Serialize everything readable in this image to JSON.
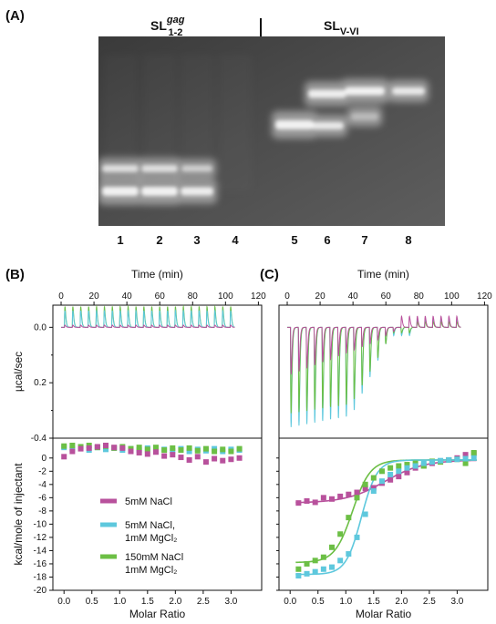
{
  "panel_a": {
    "label": "(A)",
    "group_left": {
      "main": "SL",
      "sup": "gag",
      "sub": "1-2"
    },
    "group_right": {
      "main": "SL",
      "sub": "V-VI"
    },
    "lanes": [
      "1",
      "2",
      "3",
      "4",
      "5",
      "6",
      "7",
      "8"
    ]
  },
  "panel_b": {
    "label": "(B)"
  },
  "panel_c": {
    "label": "(C)"
  },
  "legend": {
    "items": [
      {
        "lines": [
          "5mM NaCl"
        ],
        "color": "#b8519c"
      },
      {
        "lines": [
          "5mM NaCl,",
          "1mM MgCl₂"
        ],
        "color": "#5ec8dd"
      },
      {
        "lines": [
          "150mM NaCl",
          "1mM MgCl₂"
        ],
        "color": "#6cbf45"
      }
    ]
  },
  "chart_data": [
    {
      "type": "line",
      "panel": "B-top",
      "title": "",
      "xlabel": "Time (min)",
      "ylabel": "µcal/sec",
      "xlim": [
        -5,
        122
      ],
      "ylim": [
        -0.4,
        0.08
      ],
      "xticks": [
        "0",
        "20",
        "40",
        "60",
        "80",
        "100",
        "120"
      ],
      "yticks": [
        "0.0",
        "0.2",
        "-0.4"
      ],
      "injections": 22,
      "injection_interval_min": 4.8,
      "series": [
        {
          "color": "#6cbf45",
          "baseline": 0.0,
          "peak_height": 0.075
        },
        {
          "color": "#5ec8dd",
          "baseline": 0.0,
          "peak_height": 0.06
        },
        {
          "color": "#b8519c",
          "baseline": 0.0,
          "peak_height": 0.008
        }
      ]
    },
    {
      "type": "scatter",
      "panel": "B-bottom",
      "xlabel": "Molar Ratio",
      "ylabel": "kcal/mole of injectant",
      "xlim": [
        -0.2,
        3.55
      ],
      "ylim": [
        -20,
        3
      ],
      "xticks": [
        "0.0",
        "0.5",
        "1.0",
        "1.5",
        "2.0",
        "2.5",
        "3.0"
      ],
      "yticks": [
        "0",
        "-2",
        "-4",
        "-6",
        "-8",
        "-10",
        "-12",
        "-14",
        "-16",
        "-18",
        "-20"
      ],
      "series": [
        {
          "color": "#5ec8dd",
          "x": [
            0.0,
            0.15,
            0.3,
            0.45,
            0.6,
            0.75,
            0.9,
            1.05,
            1.2,
            1.35,
            1.5,
            1.65,
            1.8,
            1.95,
            2.1,
            2.25,
            2.4,
            2.55,
            2.7,
            2.85,
            3.0,
            3.15
          ],
          "y": [
            1.6,
            1.4,
            1.5,
            1.2,
            1.6,
            1.3,
            1.5,
            1.2,
            1.4,
            1.2,
            1.5,
            1.1,
            1.3,
            1.1,
            1.4,
            1.0,
            1.3,
            1.1,
            1.4,
            1.0,
            1.3,
            1.2
          ]
        },
        {
          "color": "#6cbf45",
          "x": [
            0.0,
            0.15,
            0.3,
            0.45,
            0.6,
            0.75,
            0.9,
            1.05,
            1.2,
            1.35,
            1.5,
            1.65,
            1.8,
            1.95,
            2.1,
            2.25,
            2.4,
            2.55,
            2.7,
            2.85,
            3.0,
            3.15
          ],
          "y": [
            1.8,
            1.9,
            1.7,
            1.9,
            1.6,
            1.8,
            1.5,
            1.7,
            1.4,
            1.6,
            1.3,
            1.6,
            1.2,
            1.5,
            1.2,
            1.5,
            1.1,
            1.4,
            1.0,
            1.3,
            1.0,
            1.4
          ]
        },
        {
          "color": "#b8519c",
          "x": [
            0.0,
            0.15,
            0.3,
            0.45,
            0.6,
            0.75,
            0.9,
            1.05,
            1.2,
            1.35,
            1.5,
            1.65,
            1.8,
            1.95,
            2.1,
            2.25,
            2.4,
            2.55,
            2.7,
            2.85,
            3.0,
            3.15
          ],
          "y": [
            0.2,
            1.0,
            1.4,
            1.5,
            1.7,
            1.9,
            1.6,
            1.5,
            1.0,
            0.8,
            0.6,
            0.9,
            0.3,
            0.5,
            0.1,
            -0.3,
            0.2,
            -0.6,
            -0.1,
            -0.4,
            -0.2,
            0.0
          ]
        }
      ]
    },
    {
      "type": "line",
      "panel": "C-top",
      "xlabel": "Time (min)",
      "ylabel": "",
      "xlim": [
        -5,
        122
      ],
      "ylim": [
        -0.4,
        0.08
      ],
      "xticks": [
        "0",
        "20",
        "40",
        "60",
        "80",
        "100",
        "120"
      ],
      "injections": 22,
      "injection_interval_min": 4.8
    },
    {
      "type": "scatter",
      "panel": "C-bottom",
      "xlabel": "Molar Ratio",
      "ylabel": "",
      "xlim": [
        -0.2,
        3.55
      ],
      "ylim": [
        -20,
        3
      ],
      "xticks": [
        "0.0",
        "0.5",
        "1.0",
        "1.5",
        "2.0",
        "2.5",
        "3.0"
      ],
      "series": [
        {
          "color": "#b8519c",
          "x": [
            0.15,
            0.3,
            0.45,
            0.6,
            0.75,
            0.9,
            1.05,
            1.2,
            1.35,
            1.5,
            1.65,
            1.8,
            1.95,
            2.1,
            2.25,
            2.4,
            2.55,
            2.7,
            2.85,
            3.0,
            3.15,
            3.3
          ],
          "y": [
            -6.8,
            -6.5,
            -6.7,
            -6.0,
            -6.2,
            -5.8,
            -5.5,
            -5.2,
            -4.6,
            -4.5,
            -3.8,
            -3.3,
            -2.8,
            -2.2,
            -1.5,
            -1.2,
            -0.8,
            -0.5,
            -0.3,
            0.0,
            0.5,
            0.7
          ]
        },
        {
          "color": "#6cbf45",
          "x": [
            0.15,
            0.3,
            0.45,
            0.6,
            0.75,
            0.9,
            1.05,
            1.2,
            1.35,
            1.5,
            1.65,
            1.8,
            1.95,
            2.1,
            2.25,
            2.4,
            2.55,
            2.7,
            2.85,
            3.0,
            3.15,
            3.3
          ],
          "y": [
            -16.8,
            -16.0,
            -15.5,
            -15.0,
            -13.5,
            -11.5,
            -9.0,
            -6.0,
            -4.0,
            -3.0,
            -2.0,
            -1.5,
            -1.2,
            -1.0,
            -0.8,
            -1.2,
            -0.5,
            -0.6,
            -0.3,
            -0.2,
            -0.8,
            0.8
          ]
        },
        {
          "color": "#5ec8dd",
          "x": [
            0.15,
            0.3,
            0.45,
            0.6,
            0.75,
            0.9,
            1.05,
            1.2,
            1.35,
            1.5,
            1.65,
            1.8,
            1.95,
            2.1,
            2.25,
            2.4,
            2.55,
            2.7,
            2.85,
            3.0,
            3.15,
            3.3
          ],
          "y": [
            -17.8,
            -17.5,
            -17.2,
            -16.8,
            -16.5,
            -15.5,
            -14.5,
            -12.0,
            -8.5,
            -5.0,
            -3.5,
            -2.5,
            -2.0,
            -1.5,
            -1.2,
            -0.8,
            -0.6,
            -0.4,
            -0.3,
            -0.2,
            -0.1,
            0.0
          ]
        }
      ],
      "fits": [
        {
          "color": "#b8519c",
          "bottom": -6.8,
          "top": -0.3,
          "mid": 1.7,
          "width": 0.35
        },
        {
          "color": "#6cbf45",
          "bottom": -15.8,
          "top": -0.3,
          "mid": 1.12,
          "width": 0.16
        },
        {
          "color": "#5ec8dd",
          "bottom": -17.6,
          "top": -0.3,
          "mid": 1.28,
          "width": 0.14
        }
      ]
    }
  ]
}
